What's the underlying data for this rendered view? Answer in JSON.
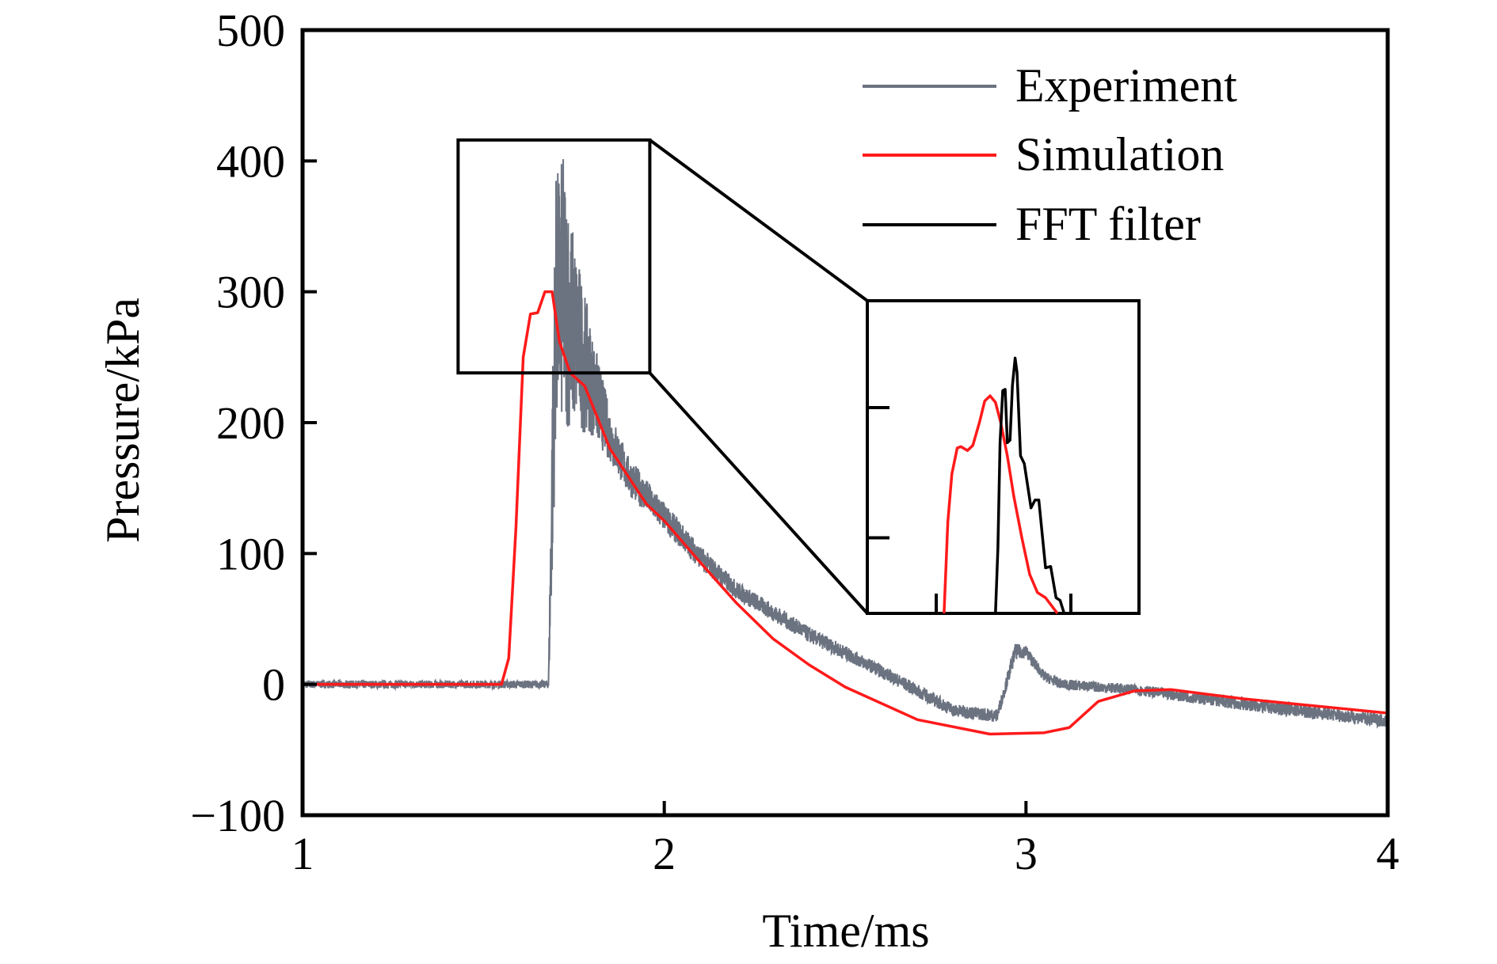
{
  "chart_data": {
    "type": "line",
    "title": "",
    "xlabel": "Time/ms",
    "ylabel": "Pressure/kPa",
    "xlim": [
      1,
      4
    ],
    "ylim": [
      -100,
      500
    ],
    "xticks": [
      1,
      2,
      3,
      4
    ],
    "xtick_labels": [
      "1",
      "2",
      "3",
      "4"
    ],
    "yticks": [
      -100,
      0,
      100,
      200,
      300,
      400,
      500
    ],
    "ytick_labels": [
      "−100",
      "0",
      "100",
      "200",
      "300",
      "400",
      "500"
    ],
    "grid": false,
    "legend_position": "top-right",
    "legend": [
      "Experiment",
      "Simulation",
      "FFT filter"
    ],
    "colors": {
      "Experiment": "#6b7280",
      "Simulation": "#ff1a1a",
      "FFT filter": "#000000"
    },
    "series": [
      {
        "name": "Experiment",
        "noisy": true,
        "points": [
          [
            1.0,
            0,
            3
          ],
          [
            1.68,
            0,
            3
          ],
          [
            1.69,
            150,
            80
          ],
          [
            1.7,
            290,
            100
          ],
          [
            1.72,
            300,
            105
          ],
          [
            1.75,
            270,
            75
          ],
          [
            1.8,
            230,
            40
          ],
          [
            1.85,
            190,
            20
          ],
          [
            1.9,
            160,
            15
          ],
          [
            2.0,
            128,
            11
          ],
          [
            2.1,
            97,
            9
          ],
          [
            2.2,
            72,
            7
          ],
          [
            2.4,
            38,
            6
          ],
          [
            2.6,
            10,
            5
          ],
          [
            2.8,
            -20,
            5
          ],
          [
            2.92,
            -24,
            5
          ],
          [
            2.94,
            -5,
            5
          ],
          [
            2.97,
            25,
            6
          ],
          [
            3.0,
            25,
            5
          ],
          [
            3.05,
            6,
            4
          ],
          [
            3.1,
            0,
            4
          ],
          [
            3.3,
            -4,
            4
          ],
          [
            3.6,
            -15,
            5
          ],
          [
            4.0,
            -28,
            5
          ]
        ]
      },
      {
        "name": "Simulation",
        "points": [
          [
            1.0,
            0
          ],
          [
            1.55,
            0
          ],
          [
            1.57,
            20
          ],
          [
            1.59,
            120
          ],
          [
            1.61,
            250
          ],
          [
            1.63,
            283
          ],
          [
            1.65,
            284
          ],
          [
            1.67,
            300
          ],
          [
            1.69,
            300
          ],
          [
            1.71,
            262
          ],
          [
            1.74,
            238
          ],
          [
            1.78,
            228
          ],
          [
            1.85,
            180
          ],
          [
            1.95,
            138
          ],
          [
            2.0,
            125
          ],
          [
            2.1,
            93
          ],
          [
            2.2,
            62
          ],
          [
            2.3,
            35
          ],
          [
            2.4,
            15
          ],
          [
            2.5,
            -2
          ],
          [
            2.7,
            -27
          ],
          [
            2.9,
            -38
          ],
          [
            3.05,
            -37
          ],
          [
            3.12,
            -33
          ],
          [
            3.2,
            -13
          ],
          [
            3.3,
            -5
          ],
          [
            3.4,
            -4
          ],
          [
            3.6,
            -11
          ],
          [
            4.0,
            -22
          ]
        ]
      }
    ],
    "zoom_region": {
      "xlim": [
        1.43,
        1.96
      ],
      "ylim": [
        238,
        416
      ]
    },
    "inset": {
      "xlim": [
        1.244,
        2.253
      ],
      "ylim": [
        42,
        282
      ],
      "xticks": [
        1.5,
        2.0
      ],
      "yticks": [
        100,
        200
      ],
      "series": [
        {
          "name": "Simulation",
          "points": [
            [
              1.529,
              42
            ],
            [
              1.543,
              112
            ],
            [
              1.558,
              149
            ],
            [
              1.578,
              169
            ],
            [
              1.592,
              170
            ],
            [
              1.616,
              167
            ],
            [
              1.636,
              171
            ],
            [
              1.661,
              189
            ],
            [
              1.68,
              205
            ],
            [
              1.7,
              209
            ],
            [
              1.72,
              204
            ],
            [
              1.739,
              189
            ],
            [
              1.764,
              163
            ],
            [
              1.788,
              132
            ],
            [
              1.818,
              100
            ],
            [
              1.847,
              72
            ],
            [
              1.876,
              58
            ],
            [
              1.906,
              54
            ],
            [
              1.95,
              42
            ]
          ]
        },
        {
          "name": "FFT filter",
          "points": [
            [
              1.72,
              42
            ],
            [
              1.729,
              92
            ],
            [
              1.737,
              173
            ],
            [
              1.747,
              213
            ],
            [
              1.756,
              214
            ],
            [
              1.764,
              173
            ],
            [
              1.774,
              175
            ],
            [
              1.783,
              217
            ],
            [
              1.793,
              238
            ],
            [
              1.8,
              227
            ],
            [
              1.813,
              163
            ],
            [
              1.827,
              157
            ],
            [
              1.852,
              123
            ],
            [
              1.867,
              129
            ],
            [
              1.881,
              129
            ],
            [
              1.906,
              77
            ],
            [
              1.925,
              78
            ],
            [
              1.945,
              54
            ],
            [
              1.96,
              52
            ],
            [
              1.975,
              42
            ]
          ]
        }
      ]
    }
  }
}
